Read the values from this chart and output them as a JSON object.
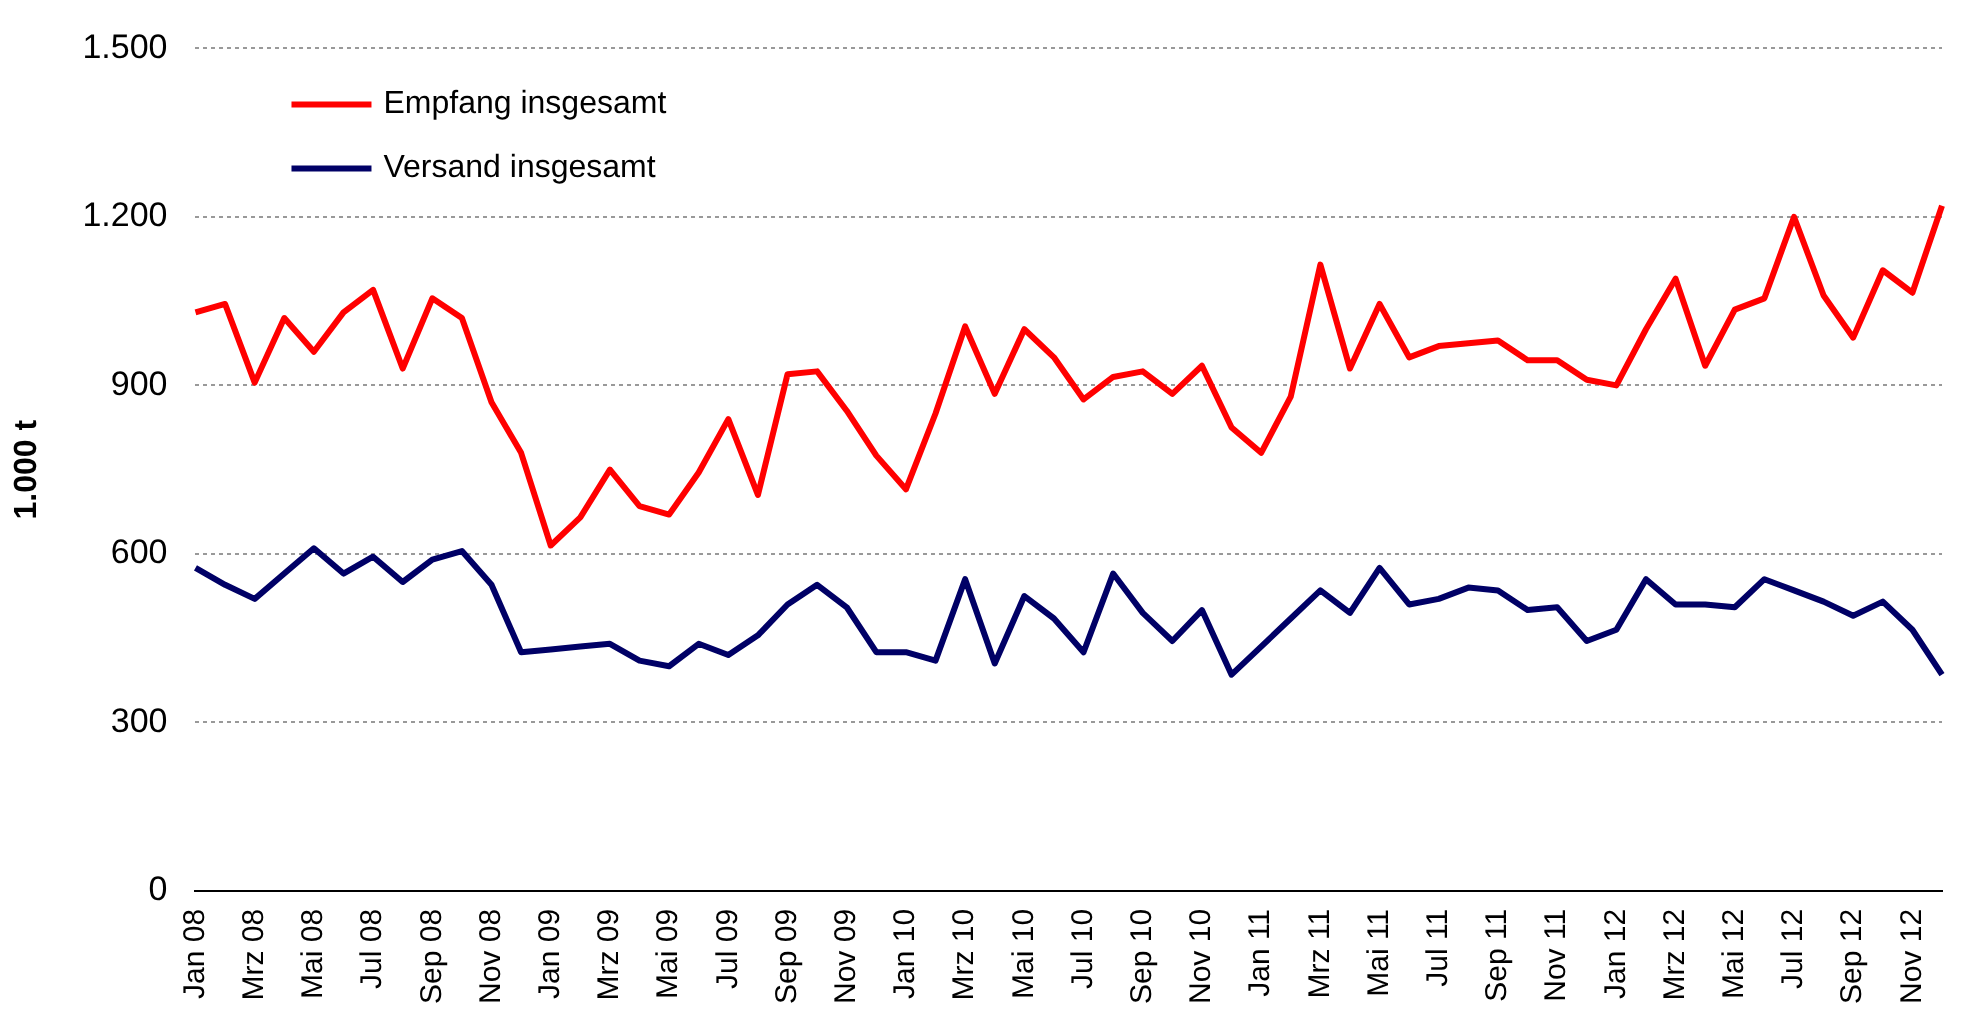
{
  "chart_data": {
    "type": "line",
    "ylabel": "1.000 t",
    "categories": [
      "Jan 08",
      null,
      "Mrz 08",
      null,
      "Mai 08",
      null,
      "Jul 08",
      null,
      "Sep 08",
      null,
      "Nov 08",
      null,
      "Jan 09",
      null,
      "Mrz 09",
      null,
      "Mai 09",
      null,
      "Jul 09",
      null,
      "Sep 09",
      null,
      "Nov 09",
      null,
      "Jan 10",
      null,
      "Mrz 10",
      null,
      "Mai 10",
      null,
      "Jul 10",
      null,
      "Sep 10",
      null,
      "Nov 10",
      null,
      "Jan 11",
      null,
      "Mrz 11",
      null,
      "Mai 11",
      null,
      "Jul 11",
      null,
      "Sep 11",
      null,
      "Nov 11",
      null,
      "Jan 12",
      null,
      "Mrz 12",
      null,
      "Mai 12",
      null,
      "Jul 12",
      null,
      "Sep 12",
      null,
      "Nov 12",
      null
    ],
    "series": [
      {
        "name": "Empfang insgesamt",
        "color": "#ff0000",
        "values": [
          1030,
          1045,
          905,
          1020,
          960,
          1030,
          1070,
          930,
          1055,
          1020,
          870,
          780,
          615,
          665,
          750,
          685,
          670,
          745,
          840,
          705,
          920,
          925,
          855,
          775,
          715,
          850,
          1005,
          885,
          1000,
          950,
          875,
          915,
          925,
          885,
          935,
          825,
          780,
          880,
          1115,
          930,
          1045,
          950,
          970,
          975,
          980,
          945,
          945,
          910,
          900,
          1000,
          1090,
          935,
          1035,
          1055,
          1200,
          1060,
          985,
          1105,
          1065,
          1220
        ]
      },
      {
        "name": "Versand insgesamt",
        "color": "#000066",
        "values": [
          575,
          545,
          520,
          565,
          610,
          565,
          595,
          550,
          590,
          605,
          545,
          425,
          430,
          435,
          440,
          410,
          400,
          440,
          420,
          455,
          510,
          545,
          505,
          425,
          425,
          410,
          555,
          405,
          525,
          485,
          425,
          565,
          495,
          445,
          500,
          385,
          435,
          485,
          535,
          495,
          575,
          510,
          520,
          540,
          535,
          500,
          505,
          445,
          465,
          555,
          510,
          510,
          505,
          555,
          535,
          515,
          490,
          515,
          465,
          385
        ]
      }
    ],
    "ylim": [
      0,
      1500
    ],
    "yticks": [
      {
        "value": 0,
        "label": "0"
      },
      {
        "value": 300,
        "label": "300"
      },
      {
        "value": 600,
        "label": "600"
      },
      {
        "value": 900,
        "label": "900"
      },
      {
        "value": 1200,
        "label": "1.200"
      },
      {
        "value": 1500,
        "label": "1.500"
      }
    ],
    "grid": "y",
    "legend": "top left",
    "marker": "none",
    "line_style": "solid"
  }
}
